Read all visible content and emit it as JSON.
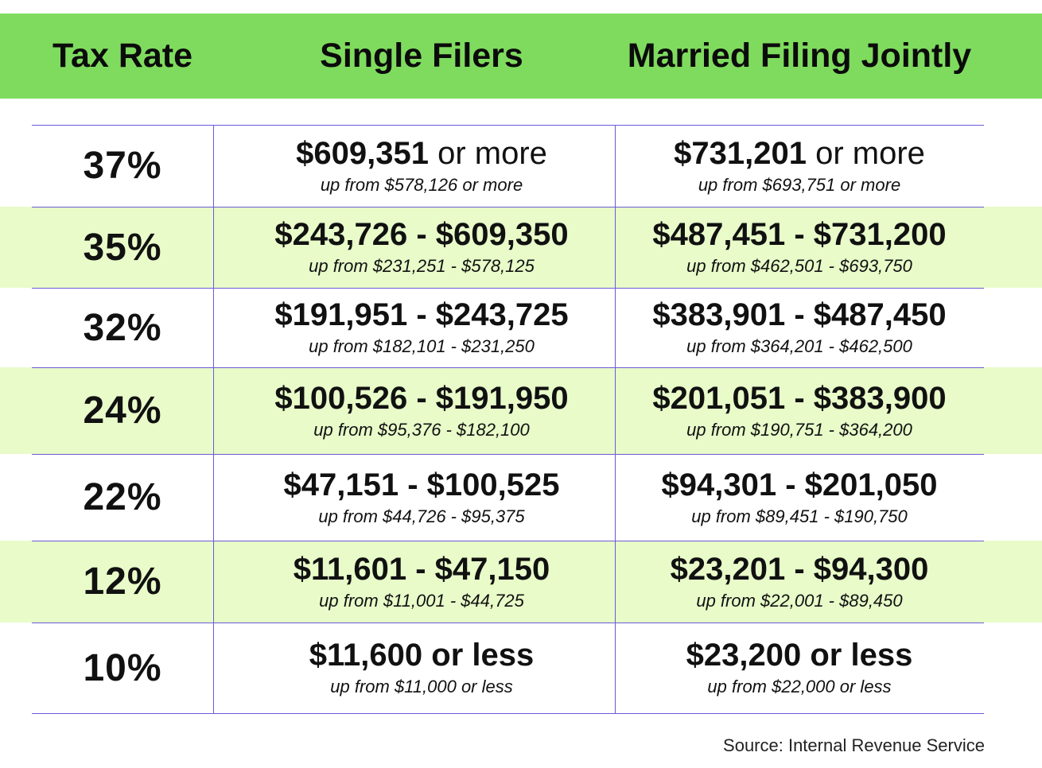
{
  "header": {
    "col1": "Tax Rate",
    "col2": "Single Filers",
    "col3": "Married Filing Jointly"
  },
  "rows": [
    {
      "rate": "37%",
      "single_main": "$609,351",
      "single_suffix": "or more",
      "single_sub": "up from $578,126 or more",
      "joint_main": "$731,201",
      "joint_suffix": "or more",
      "joint_sub": "up from $693,751 or more"
    },
    {
      "rate": "35%",
      "single_main": "$243,726 - $609,350",
      "single_sub": "up from $231,251 - $578,125",
      "joint_main": "$487,451 - $731,200",
      "joint_sub": "up from $462,501 - $693,750"
    },
    {
      "rate": "32%",
      "single_main": "$191,951 - $243,725",
      "single_sub": "up from $182,101 - $231,250",
      "joint_main": "$383,901 - $487,450",
      "joint_sub": "up from $364,201 - $462,500"
    },
    {
      "rate": "24%",
      "single_main": "$100,526 - $191,950",
      "single_sub": "up from $95,376 - $182,100",
      "joint_main": "$201,051 - $383,900",
      "joint_sub": "up from $190,751 - $364,200"
    },
    {
      "rate": "22%",
      "single_main": "$47,151 - $100,525",
      "single_sub": "up from $44,726 - $95,375",
      "joint_main": "$94,301 - $201,050",
      "joint_sub": "up from $89,451 - $190,750"
    },
    {
      "rate": "12%",
      "single_main": "$11,601 - $47,150",
      "single_sub": "up from $11,001 - $44,725",
      "joint_main": "$23,201 - $94,300",
      "joint_sub": "up from $22,001 - $89,450"
    },
    {
      "rate": "10%",
      "single_main": "$11,600 or less",
      "single_sub": "up from $11,000 or less",
      "joint_main": "$23,200 or less",
      "joint_sub": "up from $22,000 or less"
    }
  ],
  "source": "Source: Internal Revenue Service",
  "colors": {
    "header": "#7fdb5e",
    "shade": "#e8fbc9",
    "grid": "#6b5bd8"
  }
}
